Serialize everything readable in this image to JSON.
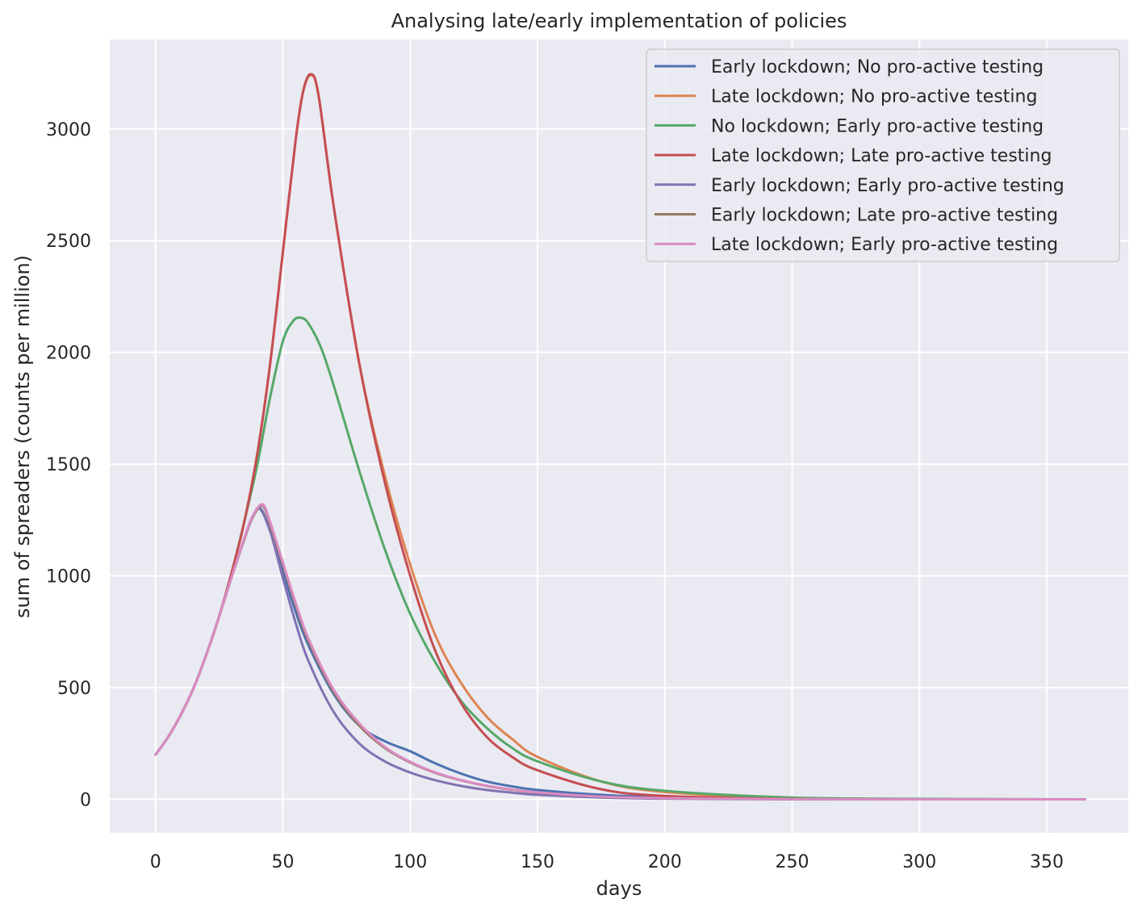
{
  "chart_data": {
    "type": "line",
    "title": "Analysing late/early implementation of policies",
    "xlabel": "days",
    "ylabel": "sum of spreaders (counts per million)",
    "xlim": [
      -18,
      382
    ],
    "ylim": [
      -150,
      3400
    ],
    "xticks": [
      0,
      50,
      100,
      150,
      200,
      250,
      300,
      350
    ],
    "yticks": [
      0,
      500,
      1000,
      1500,
      2000,
      2500,
      3000
    ],
    "grid": true,
    "legend_position": "top-right",
    "series": [
      {
        "name": "Early lockdown; No pro-active testing",
        "color": "#4c72b0",
        "x": [
          0,
          5,
          10,
          15,
          20,
          25,
          30,
          35,
          38,
          41,
          45,
          50,
          55,
          60,
          70,
          80,
          90,
          100,
          110,
          120,
          130,
          140,
          150,
          175,
          200,
          250,
          300,
          365
        ],
        "y": [
          200,
          280,
          380,
          500,
          650,
          820,
          1000,
          1170,
          1260,
          1300,
          1200,
          1020,
          840,
          690,
          470,
          330,
          260,
          215,
          160,
          115,
          80,
          58,
          42,
          20,
          9,
          2,
          0,
          0
        ]
      },
      {
        "name": "Late lockdown; No pro-active testing",
        "color": "#dd8452",
        "x": [
          0,
          5,
          10,
          15,
          20,
          25,
          30,
          35,
          40,
          45,
          50,
          55,
          58,
          61,
          64,
          70,
          80,
          90,
          100,
          110,
          120,
          130,
          140,
          150,
          175,
          200,
          250,
          300,
          365
        ],
        "y": [
          200,
          280,
          380,
          500,
          650,
          820,
          1020,
          1250,
          1550,
          1950,
          2450,
          2950,
          3170,
          3240,
          3150,
          2650,
          1950,
          1450,
          1050,
          730,
          520,
          370,
          270,
          190,
          80,
          33,
          5,
          1,
          0
        ]
      },
      {
        "name": "No lockdown; Early pro-active testing",
        "color": "#55a868",
        "x": [
          0,
          5,
          10,
          15,
          20,
          25,
          30,
          35,
          40,
          45,
          50,
          54,
          57,
          60,
          65,
          70,
          80,
          90,
          100,
          110,
          120,
          130,
          140,
          150,
          175,
          200,
          250,
          300,
          365
        ],
        "y": [
          200,
          280,
          380,
          500,
          650,
          820,
          1020,
          1250,
          1500,
          1800,
          2050,
          2140,
          2155,
          2130,
          2020,
          1850,
          1470,
          1120,
          830,
          610,
          440,
          320,
          230,
          170,
          80,
          38,
          8,
          2,
          0
        ]
      },
      {
        "name": "Late lockdown; Late pro-active testing",
        "color": "#c44e52",
        "x": [
          0,
          5,
          10,
          15,
          20,
          25,
          30,
          35,
          40,
          45,
          50,
          55,
          58,
          61,
          64,
          70,
          80,
          90,
          100,
          110,
          120,
          130,
          140,
          150,
          175,
          200,
          250,
          300,
          365
        ],
        "y": [
          200,
          280,
          380,
          500,
          650,
          820,
          1020,
          1250,
          1550,
          1950,
          2450,
          2950,
          3170,
          3245,
          3150,
          2650,
          1950,
          1420,
          1000,
          660,
          430,
          280,
          190,
          130,
          45,
          15,
          2,
          0,
          0
        ]
      },
      {
        "name": "Early lockdown; Early pro-active testing",
        "color": "#8172b3",
        "x": [
          0,
          5,
          10,
          15,
          20,
          25,
          30,
          35,
          38,
          41,
          45,
          50,
          55,
          60,
          70,
          80,
          90,
          100,
          110,
          120,
          130,
          140,
          150,
          175,
          200,
          250,
          300,
          365
        ],
        "y": [
          200,
          280,
          380,
          500,
          650,
          820,
          1000,
          1170,
          1260,
          1305,
          1200,
          990,
          790,
          620,
          390,
          250,
          170,
          120,
          85,
          60,
          42,
          30,
          20,
          8,
          3,
          0,
          0,
          0
        ]
      },
      {
        "name": "Early lockdown; Late pro-active testing",
        "color": "#937860",
        "x": [
          0,
          5,
          10,
          15,
          20,
          25,
          30,
          35,
          38,
          42,
          45,
          50,
          55,
          60,
          70,
          80,
          90,
          100,
          110,
          120,
          130,
          140,
          150,
          175,
          200,
          250,
          300,
          365
        ],
        "y": [
          200,
          280,
          380,
          500,
          650,
          820,
          1000,
          1170,
          1260,
          1315,
          1230,
          1050,
          870,
          710,
          480,
          330,
          230,
          165,
          118,
          85,
          60,
          43,
          30,
          12,
          5,
          1,
          0,
          0
        ]
      },
      {
        "name": "Late lockdown; Early pro-active testing",
        "color": "#da8bc3",
        "x": [
          0,
          5,
          10,
          15,
          20,
          25,
          30,
          35,
          38,
          42,
          45,
          50,
          55,
          60,
          70,
          80,
          90,
          100,
          110,
          120,
          130,
          140,
          150,
          175,
          200,
          250,
          300,
          365
        ],
        "y": [
          200,
          280,
          380,
          500,
          650,
          820,
          1000,
          1175,
          1265,
          1320,
          1240,
          1060,
          880,
          720,
          490,
          340,
          235,
          168,
          120,
          86,
          61,
          44,
          31,
          12,
          5,
          1,
          0,
          0
        ]
      }
    ]
  }
}
